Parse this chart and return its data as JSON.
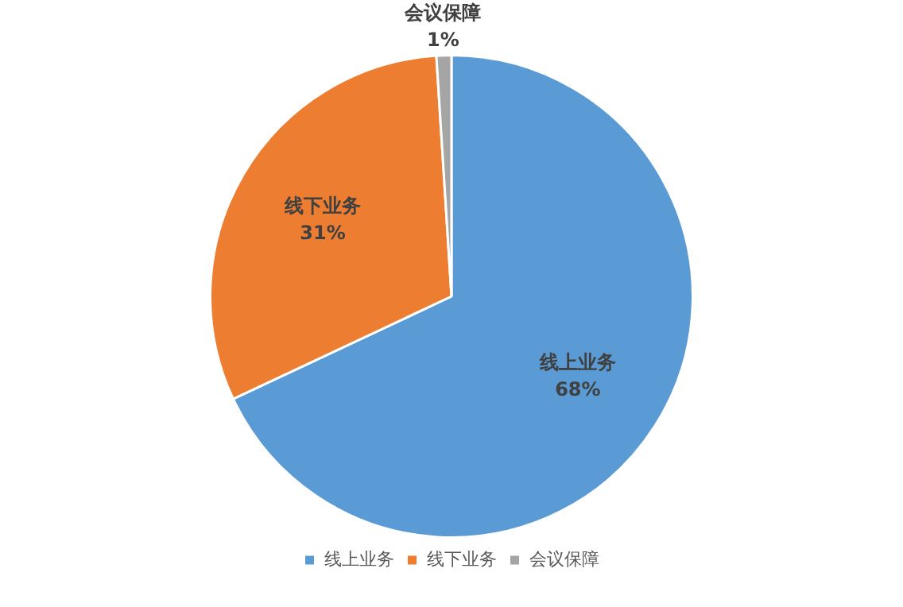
{
  "chart_data": {
    "type": "pie",
    "categories": [
      "线上业务",
      "线下业务",
      "会议保障"
    ],
    "values": [
      68,
      31,
      1
    ],
    "colors": [
      "#5b9bd5",
      "#ed7d31",
      "#a5a5a5"
    ],
    "value_labels": [
      "68%",
      "31%",
      "1%"
    ],
    "legend": "bottom"
  }
}
